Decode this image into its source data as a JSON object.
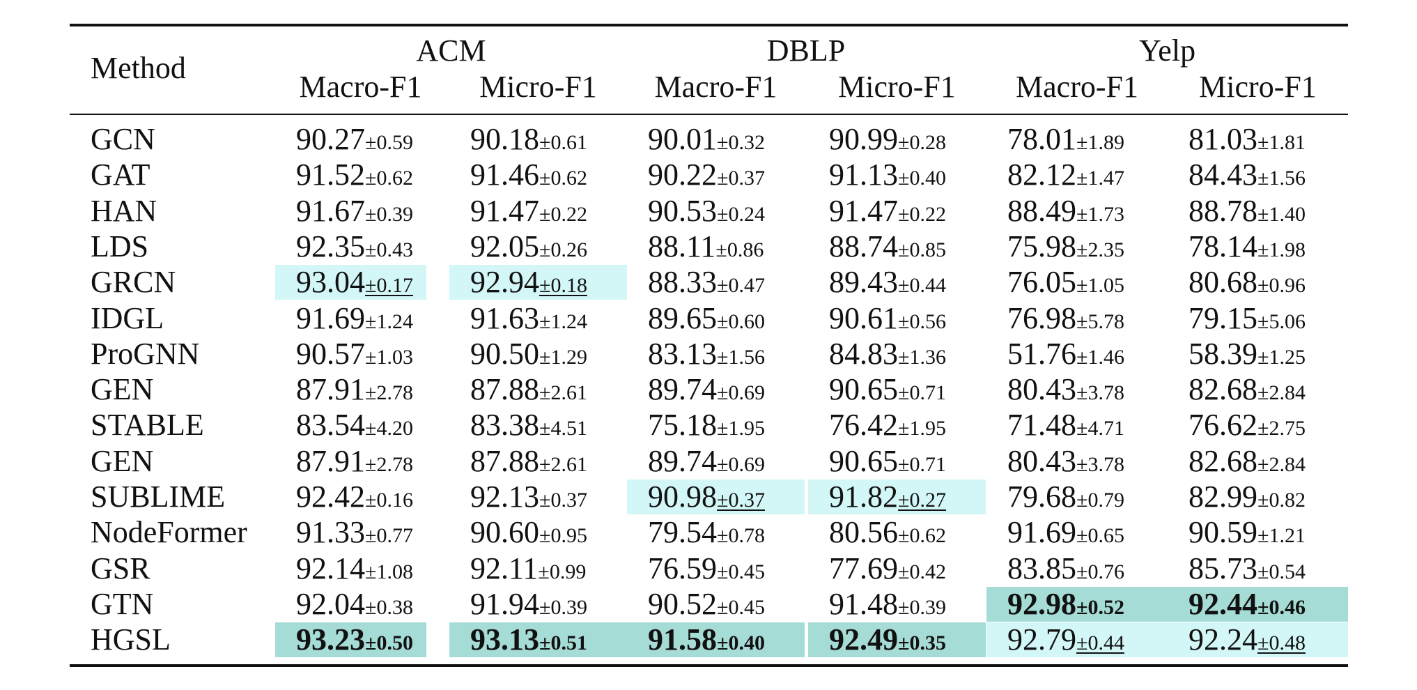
{
  "table": {
    "method_header": "Method",
    "groups": [
      "ACM",
      "DBLP",
      "Yelp"
    ],
    "metrics": [
      "Macro-F1",
      "Micro-F1",
      "Macro-F1",
      "Micro-F1",
      "Macro-F1",
      "Micro-F1"
    ],
    "colors": {
      "second_best": "#d3f6f6",
      "best": "#a6dcd6"
    },
    "rows": [
      {
        "method": "GCN",
        "cells": [
          {
            "v": "90.27",
            "s": "±0.59"
          },
          {
            "v": "90.18",
            "s": "±0.61"
          },
          {
            "v": "90.01",
            "s": "±0.32"
          },
          {
            "v": "90.99",
            "s": "±0.28"
          },
          {
            "v": "78.01",
            "s": "±1.89"
          },
          {
            "v": "81.03",
            "s": "±1.81"
          }
        ]
      },
      {
        "method": "GAT",
        "cells": [
          {
            "v": "91.52",
            "s": "±0.62"
          },
          {
            "v": "91.46",
            "s": "±0.62"
          },
          {
            "v": "90.22",
            "s": "±0.37"
          },
          {
            "v": "91.13",
            "s": "±0.40"
          },
          {
            "v": "82.12",
            "s": "±1.47"
          },
          {
            "v": "84.43",
            "s": "±1.56"
          }
        ]
      },
      {
        "method": "HAN",
        "cells": [
          {
            "v": "91.67",
            "s": "±0.39"
          },
          {
            "v": "91.47",
            "s": "±0.22"
          },
          {
            "v": "90.53",
            "s": "±0.24"
          },
          {
            "v": "91.47",
            "s": "±0.22"
          },
          {
            "v": "88.49",
            "s": "±1.73"
          },
          {
            "v": "88.78",
            "s": "±1.40"
          }
        ]
      },
      {
        "method": "LDS",
        "cells": [
          {
            "v": "92.35",
            "s": "±0.43"
          },
          {
            "v": "92.05",
            "s": "±0.26"
          },
          {
            "v": "88.11",
            "s": "±0.86"
          },
          {
            "v": "88.74",
            "s": "±0.85"
          },
          {
            "v": "75.98",
            "s": "±2.35"
          },
          {
            "v": "78.14",
            "s": "±1.98"
          }
        ]
      },
      {
        "method": "GRCN",
        "cells": [
          {
            "v": "93.04",
            "s": "±0.17",
            "mark": "second"
          },
          {
            "v": "92.94",
            "s": "±0.18",
            "mark": "second"
          },
          {
            "v": "88.33",
            "s": "±0.47"
          },
          {
            "v": "89.43",
            "s": "±0.44"
          },
          {
            "v": "76.05",
            "s": "±1.05"
          },
          {
            "v": "80.68",
            "s": "±0.96"
          }
        ]
      },
      {
        "method": "IDGL",
        "cells": [
          {
            "v": "91.69",
            "s": "±1.24"
          },
          {
            "v": "91.63",
            "s": "±1.24"
          },
          {
            "v": "89.65",
            "s": "±0.60"
          },
          {
            "v": "90.61",
            "s": "±0.56"
          },
          {
            "v": "76.98",
            "s": "±5.78"
          },
          {
            "v": "79.15",
            "s": "±5.06"
          }
        ]
      },
      {
        "method": "ProGNN",
        "cells": [
          {
            "v": "90.57",
            "s": "±1.03"
          },
          {
            "v": "90.50",
            "s": "±1.29"
          },
          {
            "v": "83.13",
            "s": "±1.56"
          },
          {
            "v": "84.83",
            "s": "±1.36"
          },
          {
            "v": "51.76",
            "s": "±1.46"
          },
          {
            "v": "58.39",
            "s": "±1.25"
          }
        ]
      },
      {
        "method": "GEN",
        "cells": [
          {
            "v": "87.91",
            "s": "±2.78"
          },
          {
            "v": "87.88",
            "s": "±2.61"
          },
          {
            "v": "89.74",
            "s": "±0.69"
          },
          {
            "v": "90.65",
            "s": "±0.71"
          },
          {
            "v": "80.43",
            "s": "±3.78"
          },
          {
            "v": "82.68",
            "s": "±2.84"
          }
        ]
      },
      {
        "method": "STABLE",
        "cells": [
          {
            "v": "83.54",
            "s": "±4.20"
          },
          {
            "v": "83.38",
            "s": "±4.51"
          },
          {
            "v": "75.18",
            "s": "±1.95"
          },
          {
            "v": "76.42",
            "s": "±1.95"
          },
          {
            "v": "71.48",
            "s": "±4.71"
          },
          {
            "v": "76.62",
            "s": "±2.75"
          }
        ]
      },
      {
        "method": "GEN",
        "cells": [
          {
            "v": "87.91",
            "s": "±2.78"
          },
          {
            "v": "87.88",
            "s": "±2.61"
          },
          {
            "v": "89.74",
            "s": "±0.69"
          },
          {
            "v": "90.65",
            "s": "±0.71"
          },
          {
            "v": "80.43",
            "s": "±3.78"
          },
          {
            "v": "82.68",
            "s": "±2.84"
          }
        ]
      },
      {
        "method": "SUBLIME",
        "cells": [
          {
            "v": "92.42",
            "s": "±0.16"
          },
          {
            "v": "92.13",
            "s": "±0.37"
          },
          {
            "v": "90.98",
            "s": "±0.37",
            "mark": "second"
          },
          {
            "v": "91.82",
            "s": "±0.27",
            "mark": "second"
          },
          {
            "v": "79.68",
            "s": "±0.79"
          },
          {
            "v": "82.99",
            "s": "±0.82"
          }
        ]
      },
      {
        "method": "NodeFormer",
        "cells": [
          {
            "v": "91.33",
            "s": "±0.77"
          },
          {
            "v": "90.60",
            "s": "±0.95"
          },
          {
            "v": "79.54",
            "s": "±0.78"
          },
          {
            "v": "80.56",
            "s": "±0.62"
          },
          {
            "v": "91.69",
            "s": "±0.65"
          },
          {
            "v": "90.59",
            "s": "±1.21"
          }
        ]
      },
      {
        "method": "GSR",
        "cells": [
          {
            "v": "92.14",
            "s": "±1.08"
          },
          {
            "v": "92.11",
            "s": "±0.99"
          },
          {
            "v": "76.59",
            "s": "±0.45"
          },
          {
            "v": "77.69",
            "s": "±0.42"
          },
          {
            "v": "83.85",
            "s": "±0.76"
          },
          {
            "v": "85.73",
            "s": "±0.54"
          }
        ]
      },
      {
        "method": "GTN",
        "cells": [
          {
            "v": "92.04",
            "s": "±0.38"
          },
          {
            "v": "91.94",
            "s": "±0.39"
          },
          {
            "v": "90.52",
            "s": "±0.45"
          },
          {
            "v": "91.48",
            "s": "±0.39"
          },
          {
            "v": "92.98",
            "s": "±0.52",
            "mark": "best"
          },
          {
            "v": "92.44",
            "s": "±0.46",
            "mark": "best"
          }
        ]
      },
      {
        "method": "HGSL",
        "cells": [
          {
            "v": "93.23",
            "s": "±0.50",
            "mark": "best"
          },
          {
            "v": "93.13",
            "s": "±0.51",
            "mark": "best"
          },
          {
            "v": "91.58",
            "s": "±0.40",
            "mark": "best"
          },
          {
            "v": "92.49",
            "s": "±0.35",
            "mark": "best"
          },
          {
            "v": "92.79",
            "s": "±0.44",
            "mark": "second"
          },
          {
            "v": "92.24",
            "s": "±0.48",
            "mark": "second"
          }
        ]
      }
    ]
  }
}
